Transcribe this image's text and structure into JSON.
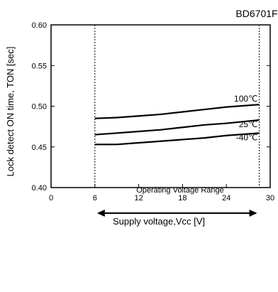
{
  "chart_data": {
    "type": "line",
    "title": "BD6701F",
    "xlabel": "Supply voltage,Vcc [V]",
    "ylabel": "Lock detect ON time, TON [sec]",
    "xlim": [
      0,
      30
    ],
    "ylim": [
      0.4,
      0.6
    ],
    "x_ticks": [
      "0",
      "6",
      "12",
      "18",
      "24",
      "30"
    ],
    "y_ticks": [
      "0.40",
      "0.45",
      "0.50",
      "0.55",
      "0.60"
    ],
    "x_tick_values": [
      0,
      6,
      12,
      18,
      24,
      30
    ],
    "y_tick_values": [
      0.4,
      0.45,
      0.5,
      0.55,
      0.6
    ],
    "grid": false,
    "series": [
      {
        "name": "100℃",
        "x": [
          6,
          9,
          12,
          15,
          18,
          21,
          24,
          28.5
        ],
        "y": [
          0.485,
          0.486,
          0.488,
          0.49,
          0.493,
          0.496,
          0.499,
          0.502
        ]
      },
      {
        "name": "25℃",
        "x": [
          6,
          9,
          12,
          15,
          18,
          21,
          24,
          28.5
        ],
        "y": [
          0.465,
          0.467,
          0.469,
          0.471,
          0.474,
          0.477,
          0.479,
          0.483
        ]
      },
      {
        "name": "-40℃",
        "x": [
          6,
          9,
          12,
          15,
          18,
          21,
          24,
          28.5
        ],
        "y": [
          0.453,
          0.453,
          0.455,
          0.457,
          0.459,
          0.461,
          0.464,
          0.467
        ]
      }
    ],
    "annotations": {
      "operating_range_label": "Operating Voltage Range",
      "operating_range": [
        6,
        28.5
      ]
    }
  }
}
